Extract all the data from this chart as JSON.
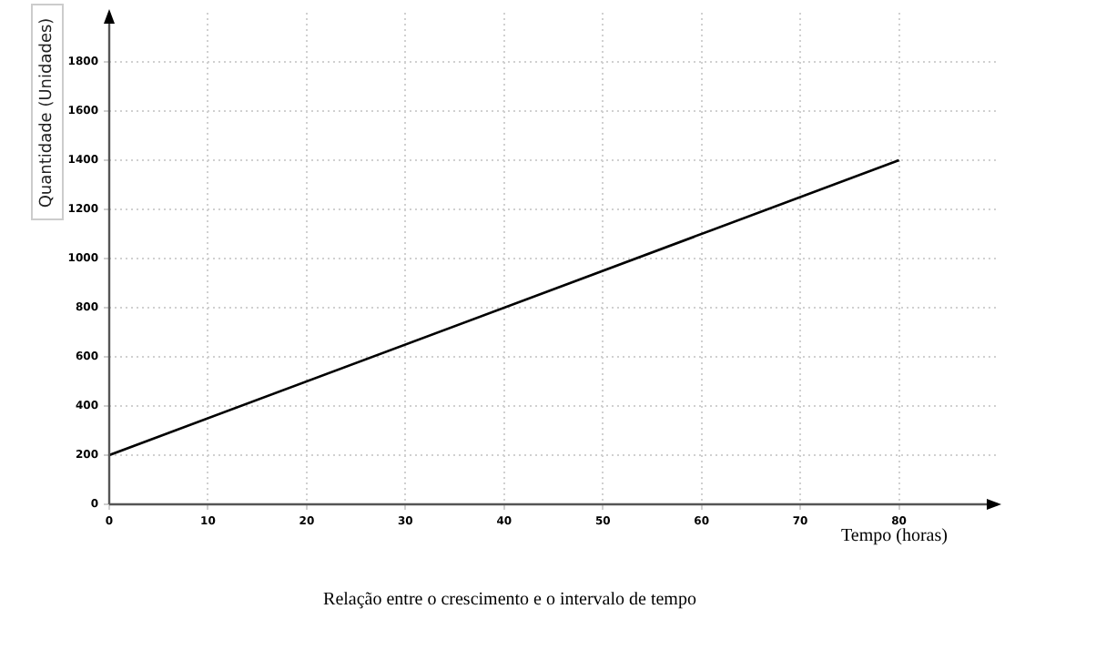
{
  "chart_data": {
    "type": "line",
    "xlabel": "Tempo (horas)",
    "ylabel": "Quantidade (Unidades)",
    "x": [
      0,
      80
    ],
    "series": [
      {
        "color": "#000000",
        "values": [
          200,
          1400
        ]
      }
    ],
    "xlim": [
      0,
      90
    ],
    "xticks": [
      0,
      10,
      20,
      30,
      40,
      50,
      60,
      70,
      80
    ],
    "ylim": [
      0,
      2000
    ],
    "yticks": [
      0,
      200,
      400,
      600,
      800,
      1000,
      1200,
      1400,
      1600,
      1800
    ],
    "grid": true,
    "legend": false,
    "marker": "none",
    "line_style": "solid",
    "annotations": [
      "Relação entre o crescimento e o intervalo de tempo"
    ]
  }
}
